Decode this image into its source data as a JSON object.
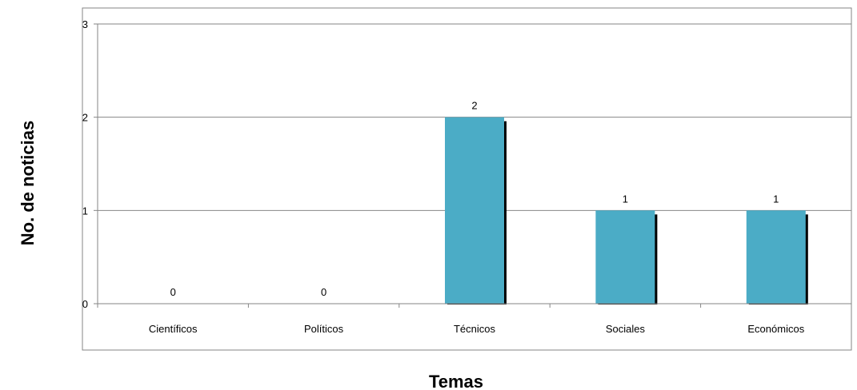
{
  "chart_data": {
    "type": "bar",
    "title": "",
    "xlabel": "Temas",
    "ylabel": "No. de noticias",
    "categories": [
      "Científicos",
      "Políticos",
      "Técnicos",
      "Sociales",
      "Económicos"
    ],
    "values": [
      0,
      0,
      2,
      1,
      1
    ],
    "data_labels": [
      "0",
      "0",
      "2",
      "1",
      "1"
    ],
    "y_ticks": [
      "0",
      "1",
      "2",
      "3"
    ],
    "ylim": [
      0,
      3
    ],
    "grid": true,
    "legend": "none",
    "colors": {
      "bar": "#4bacc6",
      "bar_shadow": "#000000",
      "gridline": "#868686",
      "border": "#868686"
    }
  }
}
